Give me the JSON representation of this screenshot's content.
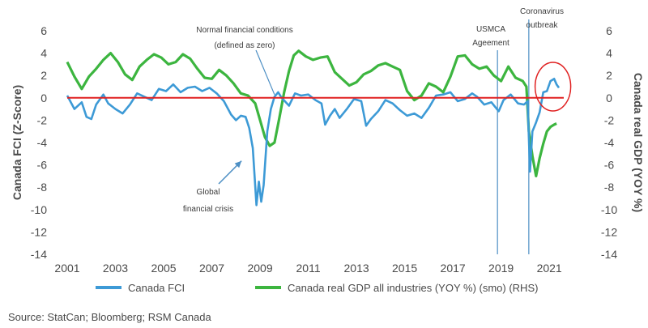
{
  "chart_data": {
    "type": "line",
    "title": "",
    "ylabel_left": "Canada FCI (Z-Score)",
    "ylabel_right": "Canada real GDP (YOY %)",
    "ylim": [
      -14,
      6
    ],
    "y_ticks": [
      6,
      4,
      2,
      0,
      -2,
      -4,
      -6,
      -8,
      -10,
      -12,
      -14
    ],
    "y2lim": [
      -14,
      6
    ],
    "y2_ticks": [
      6,
      4,
      2,
      0,
      -2,
      -4,
      -6,
      -8,
      -10,
      -12,
      -14
    ],
    "xlim": [
      2001,
      2021.6
    ],
    "x_ticks": [
      "2001",
      "2003",
      "2005",
      "2007",
      "2009",
      "2011",
      "2013",
      "2015",
      "2017",
      "2019",
      "2021"
    ],
    "grid": false,
    "legend_position": "bottom",
    "series": [
      {
        "name": "Canada FCI",
        "axis": "left",
        "color": "#3d9ad6",
        "points": [
          [
            2001.0,
            0.2
          ],
          [
            2001.3,
            -1.0
          ],
          [
            2001.6,
            -0.4
          ],
          [
            2001.8,
            -1.7
          ],
          [
            2002.0,
            -1.9
          ],
          [
            2002.2,
            -0.6
          ],
          [
            2002.5,
            0.3
          ],
          [
            2002.7,
            -0.5
          ],
          [
            2003.0,
            -1.0
          ],
          [
            2003.3,
            -1.4
          ],
          [
            2003.6,
            -0.6
          ],
          [
            2003.9,
            0.4
          ],
          [
            2004.2,
            0.1
          ],
          [
            2004.5,
            -0.2
          ],
          [
            2004.8,
            0.8
          ],
          [
            2005.1,
            0.6
          ],
          [
            2005.4,
            1.2
          ],
          [
            2005.7,
            0.5
          ],
          [
            2006.0,
            0.9
          ],
          [
            2006.3,
            1.0
          ],
          [
            2006.6,
            0.6
          ],
          [
            2006.9,
            0.9
          ],
          [
            2007.2,
            0.4
          ],
          [
            2007.5,
            -0.3
          ],
          [
            2007.8,
            -1.5
          ],
          [
            2008.0,
            -2.0
          ],
          [
            2008.2,
            -1.6
          ],
          [
            2008.4,
            -1.7
          ],
          [
            2008.55,
            -2.7
          ],
          [
            2008.7,
            -4.5
          ],
          [
            2008.85,
            -9.6
          ],
          [
            2008.95,
            -7.5
          ],
          [
            2009.05,
            -9.3
          ],
          [
            2009.15,
            -7.8
          ],
          [
            2009.3,
            -3.0
          ],
          [
            2009.45,
            -1.0
          ],
          [
            2009.6,
            0.1
          ],
          [
            2009.75,
            0.5
          ],
          [
            2009.9,
            0.0
          ],
          [
            2010.2,
            -0.7
          ],
          [
            2010.45,
            0.4
          ],
          [
            2010.7,
            0.2
          ],
          [
            2011.0,
            0.3
          ],
          [
            2011.3,
            -0.2
          ],
          [
            2011.55,
            -0.5
          ],
          [
            2011.7,
            -2.4
          ],
          [
            2011.9,
            -1.6
          ],
          [
            2012.1,
            -1.0
          ],
          [
            2012.3,
            -1.8
          ],
          [
            2012.6,
            -1.0
          ],
          [
            2012.9,
            -0.1
          ],
          [
            2013.2,
            -0.3
          ],
          [
            2013.4,
            -2.5
          ],
          [
            2013.6,
            -1.9
          ],
          [
            2013.9,
            -1.2
          ],
          [
            2014.2,
            -0.2
          ],
          [
            2014.5,
            -0.5
          ],
          [
            2014.8,
            -1.1
          ],
          [
            2015.1,
            -1.6
          ],
          [
            2015.4,
            -1.4
          ],
          [
            2015.7,
            -1.8
          ],
          [
            2016.0,
            -0.9
          ],
          [
            2016.3,
            0.2
          ],
          [
            2016.6,
            0.3
          ],
          [
            2016.9,
            0.5
          ],
          [
            2017.2,
            -0.3
          ],
          [
            2017.5,
            -0.1
          ],
          [
            2017.8,
            0.4
          ],
          [
            2018.0,
            0.1
          ],
          [
            2018.3,
            -0.6
          ],
          [
            2018.6,
            -0.4
          ],
          [
            2018.9,
            -1.2
          ],
          [
            2019.1,
            -0.2
          ],
          [
            2019.4,
            0.3
          ],
          [
            2019.7,
            -0.5
          ],
          [
            2019.95,
            -0.6
          ],
          [
            2020.1,
            -0.3
          ],
          [
            2020.2,
            -6.6
          ],
          [
            2020.3,
            -3.0
          ],
          [
            2020.45,
            -2.2
          ],
          [
            2020.6,
            -1.3
          ],
          [
            2020.75,
            0.5
          ],
          [
            2020.9,
            0.6
          ],
          [
            2021.05,
            1.5
          ],
          [
            2021.2,
            1.7
          ],
          [
            2021.3,
            1.2
          ],
          [
            2021.4,
            0.9
          ]
        ]
      },
      {
        "name": "Canada real GDP all industries (YOY %) (smo) (RHS)",
        "axis": "right",
        "color": "#3cb53f",
        "points": [
          [
            2001.0,
            3.2
          ],
          [
            2001.3,
            1.9
          ],
          [
            2001.6,
            0.8
          ],
          [
            2001.9,
            1.9
          ],
          [
            2002.2,
            2.6
          ],
          [
            2002.5,
            3.4
          ],
          [
            2002.8,
            4.0
          ],
          [
            2003.1,
            3.2
          ],
          [
            2003.4,
            2.1
          ],
          [
            2003.7,
            1.6
          ],
          [
            2004.0,
            2.8
          ],
          [
            2004.3,
            3.4
          ],
          [
            2004.6,
            3.9
          ],
          [
            2004.9,
            3.6
          ],
          [
            2005.2,
            3.0
          ],
          [
            2005.5,
            3.2
          ],
          [
            2005.8,
            3.9
          ],
          [
            2006.1,
            3.5
          ],
          [
            2006.4,
            2.6
          ],
          [
            2006.7,
            1.8
          ],
          [
            2007.0,
            1.7
          ],
          [
            2007.3,
            2.5
          ],
          [
            2007.6,
            2.0
          ],
          [
            2007.9,
            1.3
          ],
          [
            2008.2,
            0.4
          ],
          [
            2008.5,
            0.2
          ],
          [
            2008.8,
            -0.5
          ],
          [
            2009.0,
            -2.0
          ],
          [
            2009.2,
            -3.5
          ],
          [
            2009.4,
            -4.3
          ],
          [
            2009.6,
            -4.0
          ],
          [
            2009.8,
            -1.8
          ],
          [
            2010.0,
            0.5
          ],
          [
            2010.2,
            2.4
          ],
          [
            2010.4,
            3.8
          ],
          [
            2010.6,
            4.2
          ],
          [
            2010.9,
            3.7
          ],
          [
            2011.2,
            3.4
          ],
          [
            2011.5,
            3.6
          ],
          [
            2011.8,
            3.7
          ],
          [
            2012.1,
            2.3
          ],
          [
            2012.4,
            1.7
          ],
          [
            2012.7,
            1.1
          ],
          [
            2013.0,
            1.4
          ],
          [
            2013.3,
            2.1
          ],
          [
            2013.6,
            2.4
          ],
          [
            2013.9,
            2.9
          ],
          [
            2014.2,
            3.1
          ],
          [
            2014.5,
            2.8
          ],
          [
            2014.8,
            2.5
          ],
          [
            2015.1,
            0.6
          ],
          [
            2015.4,
            -0.2
          ],
          [
            2015.7,
            0.2
          ],
          [
            2016.0,
            1.3
          ],
          [
            2016.3,
            1.0
          ],
          [
            2016.6,
            0.5
          ],
          [
            2016.9,
            1.9
          ],
          [
            2017.2,
            3.7
          ],
          [
            2017.5,
            3.8
          ],
          [
            2017.8,
            3.0
          ],
          [
            2018.1,
            2.6
          ],
          [
            2018.4,
            2.8
          ],
          [
            2018.7,
            2.0
          ],
          [
            2019.0,
            1.5
          ],
          [
            2019.3,
            2.8
          ],
          [
            2019.6,
            1.8
          ],
          [
            2019.9,
            1.5
          ],
          [
            2020.05,
            1.0
          ],
          [
            2020.15,
            -3.0
          ],
          [
            2020.3,
            -5.2
          ],
          [
            2020.45,
            -7.0
          ],
          [
            2020.6,
            -5.4
          ],
          [
            2020.75,
            -4.1
          ],
          [
            2020.9,
            -3.0
          ],
          [
            2021.05,
            -2.6
          ],
          [
            2021.2,
            -2.4
          ],
          [
            2021.3,
            -2.3
          ]
        ]
      }
    ],
    "zero_line_color": "#e02020",
    "vlines": [
      {
        "x": 2018.85,
        "label_lines": [
          "USMCA",
          "Ageement"
        ]
      },
      {
        "x": 2020.15,
        "label_lines": [
          "Coronavirus",
          "outbreak"
        ]
      }
    ],
    "annotations": {
      "normal": {
        "lines": [
          "Normal financial conditions",
          "(defined as zero)"
        ],
        "point": [
          2009.6,
          0.0
        ]
      },
      "gfc": {
        "lines": [
          "Global",
          "financial crisis"
        ],
        "point": [
          2008.7,
          -5.5
        ]
      }
    },
    "highlight": {
      "center": [
        2021.15,
        1.0
      ]
    }
  },
  "source_text": "Source: StatCan; Bloomberg; RSM Canada"
}
